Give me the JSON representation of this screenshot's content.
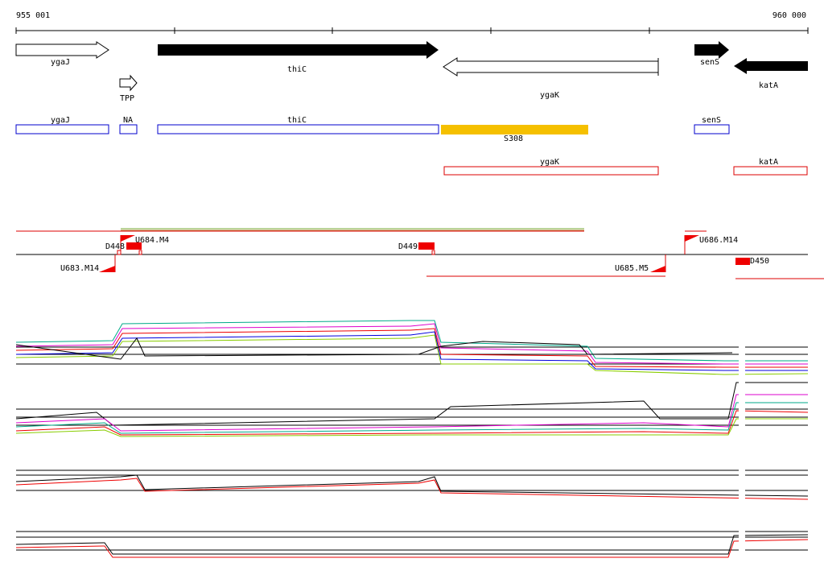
{
  "ruler": {
    "start": "955 001",
    "end": "960 000"
  },
  "genes": {
    "ygaJ": "ygaJ",
    "thiC": "thiC",
    "ygaK": "ygaK",
    "senS": "senS",
    "katA": "katA",
    "TPP": "TPP"
  },
  "blue_track": [
    "ygaJ",
    "NA",
    "thiC",
    "senS"
  ],
  "yellow_track": "S308",
  "red_track": [
    "ygaK",
    "katA"
  ],
  "markers": [
    "D448",
    "U684.M4",
    "D449",
    "U686.M14",
    "U683.M14",
    "U685.M5",
    "D450"
  ]
}
